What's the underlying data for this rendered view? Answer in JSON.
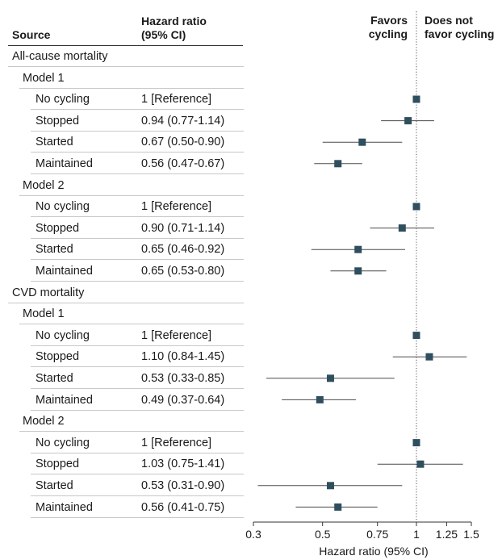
{
  "headers": {
    "source": "Source",
    "hr_line1": "Hazard ratio",
    "hr_line2": "(95% CI)",
    "favors_line1": "Favors",
    "favors_line2": "cycling",
    "notfavor_line1": "Does not",
    "notfavor_line2": "favor cycling"
  },
  "rows": [
    {
      "level": 0,
      "label": "All-cause mortality"
    },
    {
      "level": 1,
      "label": "Model 1"
    },
    {
      "level": 2,
      "label": "No cycling",
      "hr_text": "1 [Reference]"
    },
    {
      "level": 2,
      "label": "Stopped",
      "hr_text": "0.94 (0.77-1.14)"
    },
    {
      "level": 2,
      "label": "Started",
      "hr_text": "0.67 (0.50-0.90)"
    },
    {
      "level": 2,
      "label": "Maintained",
      "hr_text": "0.56 (0.47-0.67)"
    },
    {
      "level": 1,
      "label": "Model 2"
    },
    {
      "level": 2,
      "label": "No cycling",
      "hr_text": "1 [Reference]"
    },
    {
      "level": 2,
      "label": "Stopped",
      "hr_text": "0.90 (0.71-1.14)"
    },
    {
      "level": 2,
      "label": "Started",
      "hr_text": "0.65 (0.46-0.92)"
    },
    {
      "level": 2,
      "label": "Maintained",
      "hr_text": "0.65 (0.53-0.80)"
    },
    {
      "level": 0,
      "label": "CVD mortality"
    },
    {
      "level": 1,
      "label": "Model 1"
    },
    {
      "level": 2,
      "label": "No cycling",
      "hr_text": "1 [Reference]"
    },
    {
      "level": 2,
      "label": "Stopped",
      "hr_text": "1.10 (0.84-1.45)"
    },
    {
      "level": 2,
      "label": "Started",
      "hr_text": "0.53 (0.33-0.85)"
    },
    {
      "level": 2,
      "label": "Maintained",
      "hr_text": "0.49 (0.37-0.64)"
    },
    {
      "level": 1,
      "label": "Model 2"
    },
    {
      "level": 2,
      "label": "No cycling",
      "hr_text": "1 [Reference]"
    },
    {
      "level": 2,
      "label": "Stopped",
      "hr_text": "1.03 (0.75-1.41)"
    },
    {
      "level": 2,
      "label": "Started",
      "hr_text": "0.53 (0.31-0.90)"
    },
    {
      "level": 2,
      "label": "Maintained",
      "hr_text": "0.56 (0.41-0.75)"
    }
  ],
  "chart_data": {
    "type": "scatter",
    "subtype": "forest",
    "x_scale": "log",
    "xlim": [
      0.3,
      1.5
    ],
    "reference_line": 1,
    "ticks": [
      0.3,
      0.5,
      0.75,
      1,
      1.25,
      1.5
    ],
    "tick_labels": [
      "0.3",
      "0.5",
      "0.75",
      "1",
      "1.25",
      "1.5"
    ],
    "xlabel": "Hazard ratio (95% CI)",
    "marker_color": "#2f4f5f",
    "points": [
      {
        "row": 2,
        "hr": 1,
        "lo": null,
        "hi": null
      },
      {
        "row": 3,
        "hr": 0.94,
        "lo": 0.77,
        "hi": 1.14
      },
      {
        "row": 4,
        "hr": 0.67,
        "lo": 0.5,
        "hi": 0.9
      },
      {
        "row": 5,
        "hr": 0.56,
        "lo": 0.47,
        "hi": 0.67
      },
      {
        "row": 7,
        "hr": 1,
        "lo": null,
        "hi": null
      },
      {
        "row": 8,
        "hr": 0.9,
        "lo": 0.71,
        "hi": 1.14
      },
      {
        "row": 9,
        "hr": 0.65,
        "lo": 0.46,
        "hi": 0.92
      },
      {
        "row": 10,
        "hr": 0.65,
        "lo": 0.53,
        "hi": 0.8
      },
      {
        "row": 13,
        "hr": 1,
        "lo": null,
        "hi": null
      },
      {
        "row": 14,
        "hr": 1.1,
        "lo": 0.84,
        "hi": 1.45
      },
      {
        "row": 15,
        "hr": 0.53,
        "lo": 0.33,
        "hi": 0.85
      },
      {
        "row": 16,
        "hr": 0.49,
        "lo": 0.37,
        "hi": 0.64
      },
      {
        "row": 18,
        "hr": 1,
        "lo": null,
        "hi": null
      },
      {
        "row": 19,
        "hr": 1.03,
        "lo": 0.75,
        "hi": 1.41
      },
      {
        "row": 20,
        "hr": 0.53,
        "lo": 0.31,
        "hi": 0.9
      },
      {
        "row": 21,
        "hr": 0.56,
        "lo": 0.41,
        "hi": 0.75
      }
    ]
  }
}
